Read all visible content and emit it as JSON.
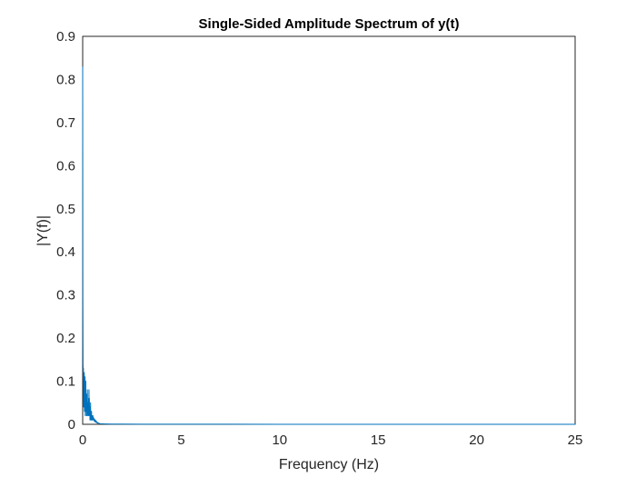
{
  "chart_data": {
    "type": "line",
    "title": "Single-Sided Amplitude Spectrum of y(t)",
    "xlabel": "Frequency (Hz)",
    "ylabel": "|Y(f)|",
    "xlim": [
      0,
      25
    ],
    "ylim": [
      0,
      0.9
    ],
    "xticks": [
      0,
      5,
      10,
      15,
      20,
      25
    ],
    "yticks": [
      0,
      0.1,
      0.2,
      0.3,
      0.4,
      0.5,
      0.6,
      0.7,
      0.8,
      0.9
    ],
    "grid": false,
    "legend": "none",
    "series": [
      {
        "color": "#0072BD",
        "x": [
          0,
          0.01,
          0.02,
          0.03,
          0.04,
          0.05,
          0.06,
          0.07,
          0.08,
          0.09,
          0.1,
          0.11,
          0.12,
          0.13,
          0.14,
          0.15,
          0.16,
          0.17,
          0.18,
          0.19,
          0.2,
          0.21,
          0.22,
          0.23,
          0.24,
          0.25,
          0.26,
          0.27,
          0.28,
          0.29,
          0.3,
          0.31,
          0.32,
          0.33,
          0.34,
          0.35,
          0.36,
          0.37,
          0.38,
          0.39,
          0.4,
          0.41,
          0.42,
          0.43,
          0.44,
          0.45,
          0.46,
          0.47,
          0.48,
          0.49,
          0.5,
          0.52,
          0.54,
          0.56,
          0.58,
          0.6,
          0.62,
          0.64,
          0.66,
          0.68,
          0.7,
          0.72,
          0.74,
          0.76,
          0.78,
          0.8,
          0.85,
          0.9,
          1.0,
          1.2,
          1.5,
          2,
          3,
          5,
          10,
          15,
          20,
          25
        ],
        "y": [
          0.83,
          0.3,
          0.14,
          0.12,
          0.13,
          0.04,
          0.1,
          0.05,
          0.12,
          0.03,
          0.09,
          0.05,
          0.11,
          0.02,
          0.08,
          0.04,
          0.1,
          0.03,
          0.06,
          0.02,
          0.05,
          0.07,
          0.02,
          0.04,
          0.08,
          0.03,
          0.05,
          0.02,
          0.04,
          0.03,
          0.06,
          0.02,
          0.08,
          0.03,
          0.06,
          0.02,
          0.04,
          0.01,
          0.03,
          0.02,
          0.05,
          0.01,
          0.03,
          0.02,
          0.01,
          0.03,
          0.01,
          0.02,
          0.01,
          0.02,
          0.01,
          0.02,
          0.01,
          0.015,
          0.008,
          0.012,
          0.006,
          0.01,
          0.005,
          0.008,
          0.004,
          0.006,
          0.003,
          0.004,
          0.002,
          0.003,
          0.002,
          0.001,
          0.001,
          0.0008,
          0.0005,
          0.0004,
          0.0003,
          0.0002,
          0.0001,
          0.0001,
          0.0001,
          0.0001
        ]
      }
    ]
  }
}
